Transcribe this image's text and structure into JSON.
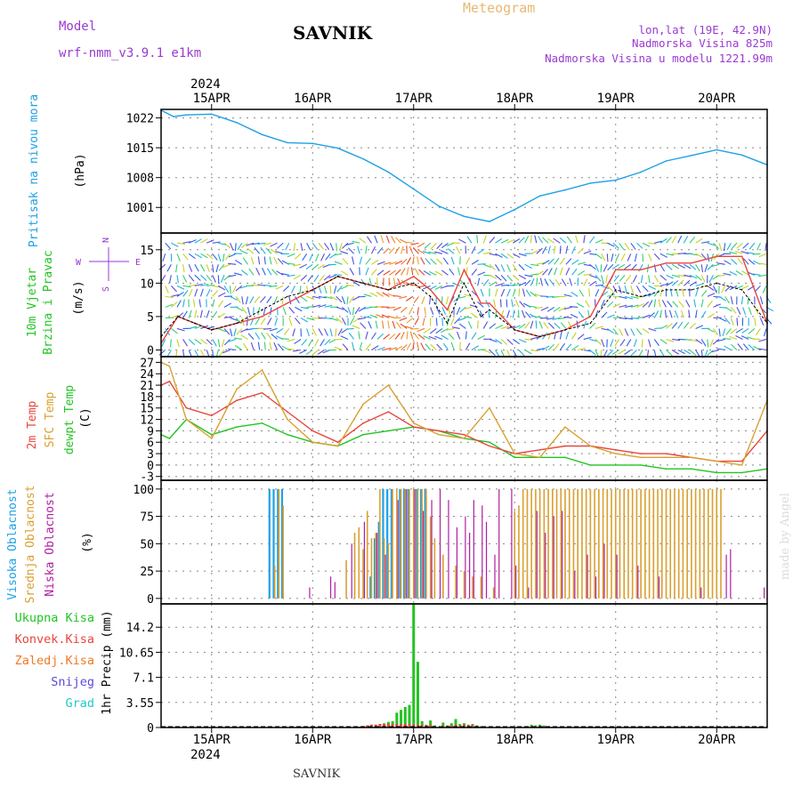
{
  "header": {
    "model_label": "Model",
    "model_name": "wrf-nmm_v3.9.1 e1km",
    "station": "SAVNIK",
    "product": "Meteogram",
    "lonlat": "lon,lat (19E, 42.9N)",
    "elevation": "Nadmorska Visina 825m",
    "model_elevation": "Nadmorska Visina u modelu 1221.99m",
    "year": "2024",
    "footer_station": "SAVNIK",
    "credit": "made by Angel"
  },
  "colors": {
    "pressure": "#1ea0e6",
    "temp2m": "#e8453c",
    "sfc_temp": "#d9a030",
    "dewpt": "#22c422",
    "high_cloud": "#1ea0e6",
    "mid_cloud": "#d9a030",
    "low_cloud": "#b01ea0",
    "total_precip": "#22c422",
    "conv_precip": "#e8453c",
    "frozen_precip": "#f07828",
    "snow": "#5a4ad8",
    "hail": "#22c8c8",
    "wind_label": "#22c422",
    "compass": "#9a3ad0"
  },
  "time_axis": {
    "dates": [
      "15APR",
      "16APR",
      "17APR",
      "18APR",
      "19APR",
      "20APR"
    ],
    "start_hour": 12,
    "end_hour": 156
  },
  "chart_data": [
    {
      "type": "line",
      "id": "pressure",
      "ylabel": [
        "Pritisak na nivou mora",
        "(hPa)"
      ],
      "yticks": [
        1001,
        1008,
        1015,
        1022
      ],
      "ylim": [
        995,
        1024
      ],
      "series": [
        {
          "key": "pressure",
          "x": [
            12,
            15,
            18,
            24,
            30,
            36,
            42,
            48,
            54,
            60,
            66,
            72,
            78,
            84,
            90,
            96,
            102,
            108,
            114,
            120,
            126,
            132,
            138,
            144,
            150,
            156
          ],
          "values": [
            1023.8,
            1022.3,
            1022.7,
            1022.9,
            1020.9,
            1018.1,
            1016.2,
            1016.0,
            1014.9,
            1012.4,
            1009.3,
            1005.3,
            1001.3,
            998.9,
            997.7,
            1000.5,
            1003.7,
            1005.1,
            1006.7,
            1007.4,
            1009.3,
            1011.9,
            1013.2,
            1014.5,
            1013.3,
            1011.0
          ]
        }
      ]
    },
    {
      "type": "line",
      "id": "wind",
      "ylabel": [
        "10m Vjetar",
        "Brzina i Pravac",
        "(m/s)"
      ],
      "compass": [
        "N",
        "W",
        "E",
        "S"
      ],
      "yticks": [
        0,
        5,
        10,
        15
      ],
      "ylim": [
        -1,
        17.5
      ],
      "series": [
        {
          "key": "wind_speed",
          "x": [
            12,
            16,
            20,
            24,
            30,
            36,
            42,
            48,
            54,
            60,
            66,
            72,
            76,
            80,
            84,
            88,
            90,
            96,
            102,
            108,
            114,
            120,
            126,
            132,
            138,
            144,
            150,
            156
          ],
          "values": [
            2,
            5,
            4,
            3,
            4,
            6,
            8,
            9,
            11,
            10,
            9,
            10,
            8,
            4,
            10,
            5,
            6,
            3,
            2,
            3,
            4,
            9,
            8,
            9,
            9,
            10,
            9,
            4
          ]
        },
        {
          "key": "wind_gust",
          "x": [
            12,
            16,
            20,
            24,
            30,
            36,
            42,
            48,
            54,
            60,
            66,
            72,
            76,
            80,
            84,
            88,
            90,
            96,
            102,
            108,
            114,
            120,
            126,
            132,
            138,
            144,
            150,
            156
          ],
          "values": [
            1,
            5,
            4,
            3,
            4,
            5,
            7,
            9,
            11,
            10,
            9,
            11,
            9,
            6,
            12,
            7,
            7,
            3,
            2,
            3,
            5,
            12,
            12,
            13,
            13,
            14,
            14,
            4
          ]
        }
      ]
    },
    {
      "type": "line",
      "id": "temperature",
      "ylabel": [
        "2m Temp",
        "SFC Temp",
        "dewpt Temp",
        "(C)"
      ],
      "yticks": [
        -3,
        0,
        3,
        6,
        9,
        12,
        15,
        18,
        21,
        24,
        27
      ],
      "ylim": [
        -4,
        28.5
      ],
      "series": [
        {
          "key": "temp2m",
          "x": [
            12,
            14,
            18,
            24,
            30,
            36,
            42,
            48,
            54,
            60,
            66,
            72,
            78,
            84,
            90,
            96,
            102,
            108,
            114,
            120,
            126,
            132,
            138,
            144,
            150,
            156
          ],
          "values": [
            21,
            22,
            15,
            13,
            17,
            19,
            14,
            9,
            6,
            11,
            14,
            10,
            9,
            8,
            5,
            3,
            4,
            5,
            5,
            4,
            3,
            3,
            2,
            1,
            1,
            9
          ]
        },
        {
          "key": "sfc_temp",
          "x": [
            12,
            14,
            18,
            24,
            30,
            36,
            42,
            48,
            54,
            60,
            66,
            72,
            78,
            84,
            90,
            96,
            102,
            108,
            114,
            120,
            126,
            132,
            138,
            144,
            150,
            156
          ],
          "values": [
            27,
            26,
            12,
            7,
            20,
            25,
            12,
            6,
            5,
            16,
            21,
            11,
            8,
            7,
            15,
            3,
            2,
            10,
            5,
            3,
            2,
            2,
            2,
            1,
            0,
            17
          ]
        },
        {
          "key": "dewpt",
          "x": [
            12,
            14,
            18,
            24,
            30,
            36,
            42,
            48,
            54,
            60,
            66,
            72,
            78,
            84,
            90,
            96,
            102,
            108,
            114,
            120,
            126,
            132,
            138,
            144,
            150,
            156
          ],
          "values": [
            8,
            7,
            12,
            8,
            10,
            11,
            8,
            6,
            5,
            8,
            9,
            10,
            9,
            7,
            6,
            2,
            2,
            2,
            0,
            0,
            0,
            -1,
            -1,
            -2,
            -2,
            -1
          ]
        }
      ]
    },
    {
      "type": "bar",
      "id": "clouds",
      "ylabel": [
        "Visoka Oblacnost",
        "Srednja Oblacnost",
        "Niska Oblacnost",
        "(%)"
      ],
      "yticks": [
        0,
        25,
        50,
        75,
        100
      ],
      "ylim": [
        -5,
        108
      ],
      "series": [
        {
          "key": "high_cloud",
          "x": [
            38,
            39,
            40,
            41,
            62,
            63,
            64,
            65,
            66,
            67,
            69,
            70,
            71,
            73,
            74,
            75
          ],
          "values": [
            100,
            100,
            100,
            100,
            20,
            55,
            70,
            100,
            100,
            100,
            100,
            100,
            100,
            100,
            100,
            100
          ]
        },
        {
          "key": "mid_cloud",
          "x": [
            39,
            40,
            41,
            56,
            58,
            59,
            60,
            61,
            62,
            63,
            64,
            65,
            66,
            67,
            68,
            69,
            70,
            71,
            72,
            73,
            74,
            75,
            76,
            77,
            79,
            82,
            84,
            86,
            88,
            91,
            96,
            97,
            98,
            99,
            100,
            101,
            102,
            103,
            104,
            105,
            106,
            107,
            108,
            109,
            110,
            111,
            112,
            113,
            114,
            115,
            116,
            117,
            118,
            119,
            120,
            121,
            122,
            123,
            124,
            125,
            126,
            127,
            128,
            129,
            130,
            131,
            132,
            133,
            134,
            135,
            136,
            137,
            138,
            139,
            140,
            141,
            142,
            143,
            144,
            145
          ],
          "values": [
            30,
            100,
            85,
            35,
            60,
            65,
            45,
            80,
            55,
            60,
            100,
            55,
            50,
            100,
            100,
            100,
            100,
            100,
            100,
            100,
            100,
            100,
            75,
            55,
            40,
            30,
            25,
            20,
            20,
            10,
            80,
            85,
            100,
            100,
            100,
            100,
            100,
            100,
            100,
            100,
            100,
            100,
            100,
            100,
            100,
            100,
            100,
            100,
            100,
            100,
            100,
            100,
            100,
            100,
            100,
            100,
            100,
            100,
            100,
            100,
            100,
            100,
            100,
            100,
            100,
            100,
            100,
            100,
            100,
            100,
            100,
            100,
            100,
            100,
            100,
            100,
            100,
            100,
            100,
            100
          ]
        },
        {
          "key": "low_cloud",
          "x": [
            47,
            52,
            53,
            57,
            60,
            63,
            65,
            68,
            70,
            72,
            74,
            76,
            78,
            80,
            82,
            84,
            85,
            86,
            88,
            89,
            91,
            92,
            95,
            96,
            99,
            101,
            103,
            105,
            107,
            110,
            113,
            115,
            117,
            120,
            125,
            130,
            140,
            146,
            147,
            155
          ],
          "values": [
            10,
            20,
            15,
            50,
            70,
            60,
            40,
            90,
            100,
            100,
            80,
            90,
            100,
            90,
            65,
            75,
            60,
            90,
            85,
            70,
            40,
            100,
            100,
            30,
            10,
            80,
            60,
            75,
            80,
            25,
            40,
            20,
            50,
            40,
            30,
            20,
            10,
            40,
            45,
            10
          ]
        }
      ]
    },
    {
      "type": "bar",
      "id": "precip",
      "ylabel": [
        "1hr Precip (mm)"
      ],
      "legend": [
        "Ukupna Kisa",
        "Konvek.Kisa",
        "Zaledj.Kisa",
        "Snijeg",
        "Grad"
      ],
      "yticks": [
        0,
        3.55,
        7.1,
        10.65,
        14.2
      ],
      "ylim": [
        0,
        17.5
      ],
      "series": [
        {
          "key": "total_precip",
          "x": [
            59,
            60,
            61,
            62,
            63,
            64,
            65,
            66,
            67,
            68,
            69,
            70,
            71,
            72,
            73,
            74,
            75,
            76,
            77,
            79,
            80,
            81,
            82,
            83,
            84,
            85,
            86,
            87,
            88,
            99,
            100,
            101,
            102,
            103,
            104,
            105
          ],
          "values": [
            0.1,
            0.2,
            0.3,
            0.4,
            0.4,
            0.5,
            0.6,
            0.8,
            0.9,
            2.1,
            2.5,
            2.9,
            3.2,
            17.5,
            9.3,
            0.9,
            0.4,
            1.0,
            0.3,
            0.7,
            0.3,
            0.6,
            1.2,
            0.5,
            0.6,
            0.4,
            0.5,
            0.3,
            0.2,
            0.2,
            0.4,
            0.3,
            0.4,
            0.3,
            0.2,
            0.1
          ]
        },
        {
          "key": "conv_precip",
          "x": [
            59,
            60,
            61,
            62,
            63,
            64,
            65,
            66,
            67,
            68,
            69,
            70,
            71,
            72,
            73,
            74,
            75,
            76,
            77,
            79,
            80,
            81,
            82,
            83,
            84,
            85,
            86,
            87,
            88,
            99,
            100,
            101,
            102,
            103,
            104,
            105
          ],
          "values": [
            0.1,
            0.2,
            0.3,
            0.4,
            0.4,
            0.5,
            0.5,
            0.5,
            0.5,
            0.5,
            0.5,
            0.5,
            0.5,
            0.4,
            0.4,
            0.4,
            0.3,
            0.4,
            0.2,
            0.3,
            0.2,
            0.3,
            0.4,
            0.3,
            0.4,
            0.3,
            0.4,
            0.2,
            0.1,
            0.1,
            0.2,
            0.2,
            0.2,
            0.2,
            0.1,
            0.1
          ]
        }
      ]
    }
  ]
}
